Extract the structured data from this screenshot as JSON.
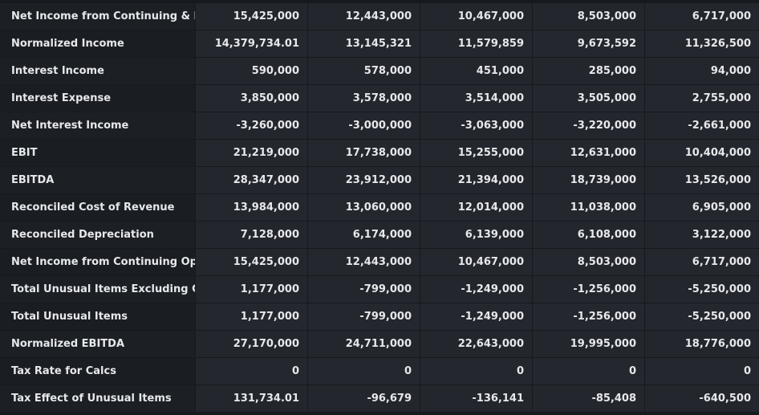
{
  "table": {
    "rows": [
      {
        "label": "Net Income from Continuing & D...",
        "values": [
          "15,425,000",
          "12,443,000",
          "10,467,000",
          "8,503,000",
          "6,717,000"
        ]
      },
      {
        "label": "Normalized Income",
        "values": [
          "14,379,734.01",
          "13,145,321",
          "11,579,859",
          "9,673,592",
          "11,326,500"
        ]
      },
      {
        "label": "Interest Income",
        "values": [
          "590,000",
          "578,000",
          "451,000",
          "285,000",
          "94,000"
        ]
      },
      {
        "label": "Interest Expense",
        "values": [
          "3,850,000",
          "3,578,000",
          "3,514,000",
          "3,505,000",
          "2,755,000"
        ]
      },
      {
        "label": "Net Interest Income",
        "values": [
          "-3,260,000",
          "-3,000,000",
          "-3,063,000",
          "-3,220,000",
          "-2,661,000"
        ]
      },
      {
        "label": "EBIT",
        "values": [
          "21,219,000",
          "17,738,000",
          "15,255,000",
          "12,631,000",
          "10,404,000"
        ]
      },
      {
        "label": "EBITDA",
        "values": [
          "28,347,000",
          "23,912,000",
          "21,394,000",
          "18,739,000",
          "13,526,000"
        ]
      },
      {
        "label": "Reconciled Cost of Revenue",
        "values": [
          "13,984,000",
          "13,060,000",
          "12,014,000",
          "11,038,000",
          "6,905,000"
        ]
      },
      {
        "label": "Reconciled Depreciation",
        "values": [
          "7,128,000",
          "6,174,000",
          "6,139,000",
          "6,108,000",
          "3,122,000"
        ]
      },
      {
        "label": "Net Income from Continuing Op...",
        "values": [
          "15,425,000",
          "12,443,000",
          "10,467,000",
          "8,503,000",
          "6,717,000"
        ]
      },
      {
        "label": "Total Unusual Items Excluding G...",
        "values": [
          "1,177,000",
          "-799,000",
          "-1,249,000",
          "-1,256,000",
          "-5,250,000"
        ]
      },
      {
        "label": "Total Unusual Items",
        "values": [
          "1,177,000",
          "-799,000",
          "-1,249,000",
          "-1,256,000",
          "-5,250,000"
        ]
      },
      {
        "label": "Normalized EBITDA",
        "values": [
          "27,170,000",
          "24,711,000",
          "22,643,000",
          "19,995,000",
          "18,776,000"
        ]
      },
      {
        "label": "Tax Rate for Calcs",
        "values": [
          "0",
          "0",
          "0",
          "0",
          "0"
        ]
      },
      {
        "label": "Tax Effect of Unusual Items",
        "values": [
          "131,734.01",
          "-96,679",
          "-136,141",
          "-85,408",
          "-640,500"
        ]
      }
    ]
  }
}
